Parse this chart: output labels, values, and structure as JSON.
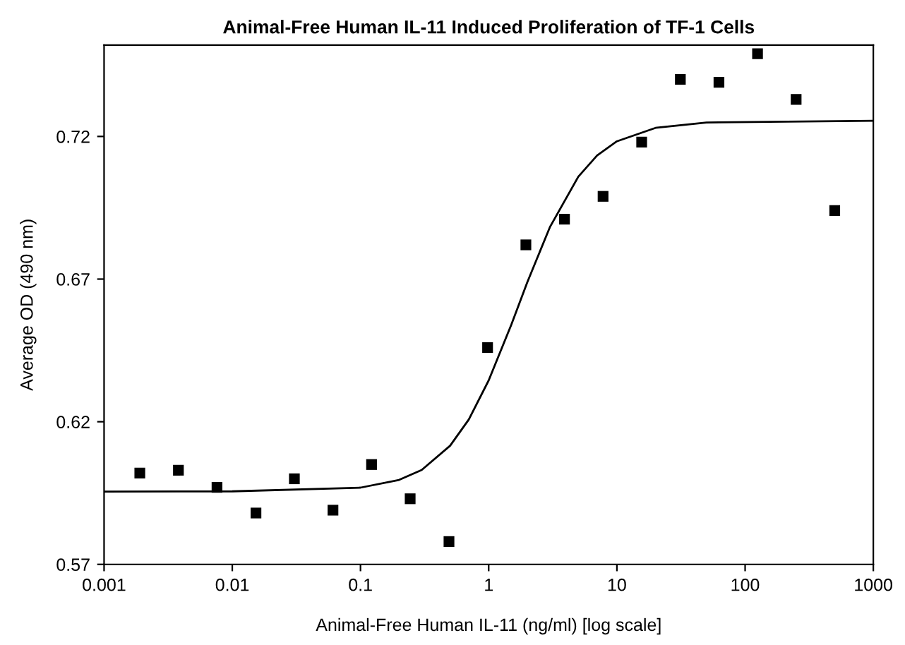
{
  "chart_data": {
    "type": "scatter",
    "title": "Animal-Free Human IL-11 Induced Proliferation of TF-1 Cells",
    "xlabel": "Animal-Free Human IL-11 (ng/ml) [log scale]",
    "ylabel": "Average OD (490 nm)",
    "log": "x",
    "grid": false,
    "xlim": [
      0.001,
      1000
    ],
    "xticks": [
      0.001,
      0.01,
      0.1,
      1,
      10,
      100,
      1000
    ],
    "ylim": [
      0.57,
      0.752
    ],
    "yticks": [
      0.57,
      0.62,
      0.67,
      0.72
    ],
    "series": [
      {
        "marker": "square",
        "color": "#000000",
        "x": [
          0.0019,
          0.0038,
          0.0076,
          0.0153,
          0.0305,
          0.061,
          0.122,
          0.244,
          0.49,
          0.98,
          1.95,
          3.9,
          7.8,
          15.6,
          31.25,
          62.5,
          125,
          250,
          500
        ],
        "values": [
          0.602,
          0.603,
          0.597,
          0.588,
          0.6,
          0.589,
          0.605,
          0.593,
          0.578,
          0.646,
          0.682,
          0.691,
          0.699,
          0.718,
          0.74,
          0.739,
          0.749,
          0.733,
          0.694
        ]
      },
      {
        "type": "line",
        "marker": "none",
        "line_style": "solid",
        "color": "#000000",
        "x": [
          0.001,
          0.01,
          0.1,
          0.2,
          0.3,
          0.5,
          0.7,
          1,
          1.5,
          2,
          3,
          5,
          7,
          10,
          20,
          50,
          1000
        ],
        "values": [
          0.5955,
          0.5956,
          0.5969,
          0.5996,
          0.6031,
          0.6116,
          0.6208,
          0.6345,
          0.654,
          0.6689,
          0.6882,
          0.7059,
          0.7133,
          0.7183,
          0.723,
          0.7249,
          0.7255
        ]
      }
    ]
  }
}
